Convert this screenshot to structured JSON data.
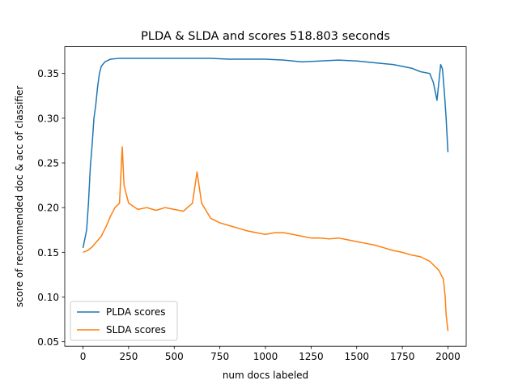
{
  "chart_data": {
    "type": "line",
    "title": "PLDA & SLDA and scores 518.803 seconds",
    "xlabel": "num docs labeled",
    "ylabel": "score of recommended doc & acc of classifier",
    "xlim": [
      -100,
      2100
    ],
    "ylim": [
      0.045,
      0.38
    ],
    "xticks": [
      0,
      250,
      500,
      750,
      1000,
      1250,
      1500,
      1750,
      2000
    ],
    "xtick_labels": [
      "0",
      "250",
      "500",
      "750",
      "1000",
      "1250",
      "1500",
      "1750",
      "2000"
    ],
    "yticks": [
      0.05,
      0.1,
      0.15,
      0.2,
      0.25,
      0.3,
      0.35
    ],
    "ytick_labels": [
      "0.05",
      "0.10",
      "0.15",
      "0.20",
      "0.25",
      "0.30",
      "0.35"
    ],
    "grid": false,
    "legend_position": "lower-left",
    "series": [
      {
        "name": "PLDA scores",
        "color": "#1f77b4",
        "points": [
          [
            0,
            0.155
          ],
          [
            20,
            0.175
          ],
          [
            30,
            0.205
          ],
          [
            40,
            0.245
          ],
          [
            50,
            0.27
          ],
          [
            60,
            0.3
          ],
          [
            70,
            0.315
          ],
          [
            80,
            0.335
          ],
          [
            90,
            0.35
          ],
          [
            100,
            0.358
          ],
          [
            120,
            0.363
          ],
          [
            150,
            0.366
          ],
          [
            200,
            0.367
          ],
          [
            300,
            0.367
          ],
          [
            400,
            0.367
          ],
          [
            500,
            0.367
          ],
          [
            600,
            0.367
          ],
          [
            700,
            0.367
          ],
          [
            800,
            0.366
          ],
          [
            900,
            0.366
          ],
          [
            1000,
            0.366
          ],
          [
            1100,
            0.365
          ],
          [
            1200,
            0.363
          ],
          [
            1300,
            0.364
          ],
          [
            1400,
            0.365
          ],
          [
            1500,
            0.364
          ],
          [
            1600,
            0.362
          ],
          [
            1700,
            0.36
          ],
          [
            1750,
            0.358
          ],
          [
            1800,
            0.356
          ],
          [
            1850,
            0.352
          ],
          [
            1900,
            0.35
          ],
          [
            1920,
            0.34
          ],
          [
            1940,
            0.32
          ],
          [
            1960,
            0.36
          ],
          [
            1970,
            0.355
          ],
          [
            1980,
            0.33
          ],
          [
            1990,
            0.3
          ],
          [
            2000,
            0.262
          ]
        ]
      },
      {
        "name": "SLDA scores",
        "color": "#ff7f0e",
        "points": [
          [
            0,
            0.15
          ],
          [
            25,
            0.152
          ],
          [
            50,
            0.156
          ],
          [
            75,
            0.162
          ],
          [
            100,
            0.168
          ],
          [
            125,
            0.178
          ],
          [
            150,
            0.19
          ],
          [
            175,
            0.2
          ],
          [
            200,
            0.205
          ],
          [
            215,
            0.268
          ],
          [
            225,
            0.225
          ],
          [
            250,
            0.205
          ],
          [
            300,
            0.198
          ],
          [
            350,
            0.2
          ],
          [
            400,
            0.197
          ],
          [
            450,
            0.2
          ],
          [
            500,
            0.198
          ],
          [
            550,
            0.196
          ],
          [
            600,
            0.205
          ],
          [
            625,
            0.24
          ],
          [
            650,
            0.205
          ],
          [
            700,
            0.188
          ],
          [
            750,
            0.183
          ],
          [
            800,
            0.18
          ],
          [
            850,
            0.177
          ],
          [
            900,
            0.174
          ],
          [
            950,
            0.172
          ],
          [
            1000,
            0.17
          ],
          [
            1050,
            0.172
          ],
          [
            1100,
            0.172
          ],
          [
            1150,
            0.17
          ],
          [
            1200,
            0.168
          ],
          [
            1250,
            0.166
          ],
          [
            1300,
            0.166
          ],
          [
            1350,
            0.165
          ],
          [
            1400,
            0.166
          ],
          [
            1450,
            0.164
          ],
          [
            1500,
            0.162
          ],
          [
            1550,
            0.16
          ],
          [
            1600,
            0.158
          ],
          [
            1650,
            0.155
          ],
          [
            1700,
            0.152
          ],
          [
            1750,
            0.15
          ],
          [
            1800,
            0.147
          ],
          [
            1850,
            0.145
          ],
          [
            1900,
            0.14
          ],
          [
            1950,
            0.13
          ],
          [
            1975,
            0.12
          ],
          [
            1985,
            0.1
          ],
          [
            1990,
            0.08
          ],
          [
            2000,
            0.062
          ]
        ]
      }
    ]
  }
}
